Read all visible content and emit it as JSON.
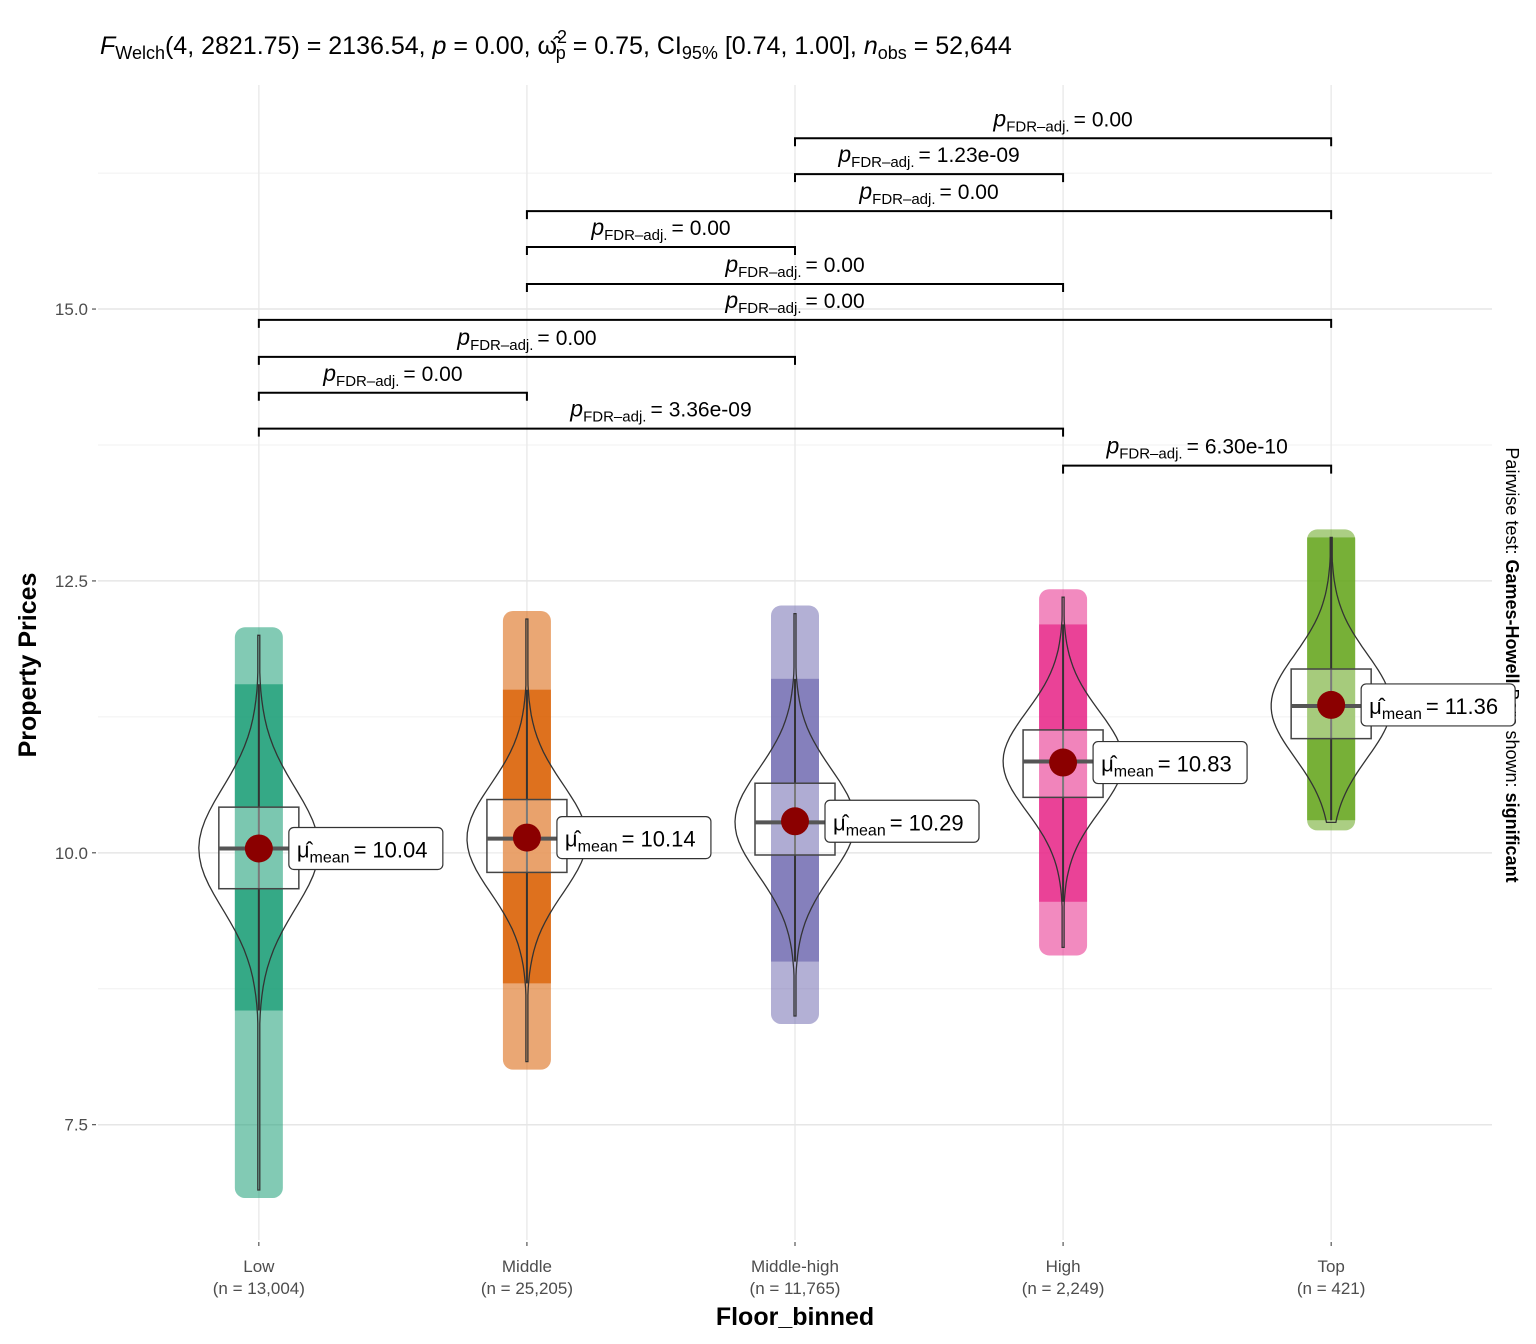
{
  "chart_data": {
    "type": "violin",
    "subtitle_parts": [
      {
        "text": "F",
        "style": "italic"
      },
      {
        "text": "Welch",
        "style": "sub"
      },
      {
        "text": "(4, 2821.75) = 2136.54, ",
        "style": "normal"
      },
      {
        "text": "p",
        "style": "italic"
      },
      {
        "text": " = 0.00, ",
        "style": "normal"
      },
      {
        "text": "ω̂",
        "style": "normal"
      },
      {
        "text": "2",
        "style": "sup"
      },
      {
        "text": "p",
        "style": "sub-under"
      },
      {
        "text": " = 0.75, CI",
        "style": "normal"
      },
      {
        "text": "95%",
        "style": "sub"
      },
      {
        "text": " [0.74, 1.00], ",
        "style": "normal"
      },
      {
        "text": "n",
        "style": "italic"
      },
      {
        "text": "obs",
        "style": "sub"
      },
      {
        "text": " = 52,644",
        "style": "normal"
      }
    ],
    "caption_parts": [
      {
        "text": "Pairwise test: ",
        "style": "normal"
      },
      {
        "text": "Games-Howell",
        "style": "bold"
      },
      {
        "text": " Bars shown: ",
        "style": "normal"
      },
      {
        "text": "significant",
        "style": "bold"
      }
    ],
    "x_label": "Floor_binned",
    "y_label": "Property Prices",
    "categories": [
      "Low",
      "Middle",
      "Middle-high",
      "High",
      "Top"
    ],
    "n_labels": [
      "(n = 13,004)",
      "(n = 25,205)",
      "(n = 11,765)",
      "(n = 2,249)",
      "(n = 421)"
    ],
    "colors": [
      "#1b9e77",
      "#d95f02",
      "#7570b3",
      "#e7298a",
      "#66a61e"
    ],
    "mean_color": "#8b0000",
    "values": [
      10.04,
      10.14,
      10.29,
      10.83,
      11.36
    ],
    "mean_label": {
      "symbol": "μ̂",
      "subscript": "mean",
      "operator": "="
    },
    "box": [
      {
        "q1": 9.67,
        "median": 10.04,
        "q3": 10.42,
        "whisker_low": 8.55,
        "whisker_high": 11.55,
        "point_min": 6.9,
        "point_max": 12.0
      },
      {
        "q1": 9.82,
        "median": 10.13,
        "q3": 10.49,
        "whisker_low": 8.8,
        "whisker_high": 11.5,
        "point_min": 8.08,
        "point_max": 12.15
      },
      {
        "q1": 9.98,
        "median": 10.28,
        "q3": 10.64,
        "whisker_low": 9.0,
        "whisker_high": 11.6,
        "point_min": 8.5,
        "point_max": 12.2
      },
      {
        "q1": 10.51,
        "median": 10.84,
        "q3": 11.13,
        "whisker_low": 9.55,
        "whisker_high": 12.1,
        "point_min": 9.13,
        "point_max": 12.35
      },
      {
        "q1": 11.05,
        "median": 11.35,
        "q3": 11.69,
        "whisker_low": 10.3,
        "whisker_high": 12.9,
        "point_min": 10.28,
        "point_max": 12.9
      }
    ],
    "p_label": {
      "symbol": "p",
      "subscript": "FDR–adj.",
      "operator": "="
    },
    "comparisons": [
      {
        "from": 2,
        "to": 4,
        "y": 16.57,
        "p_value": "0.00"
      },
      {
        "from": 2,
        "to": 3,
        "y": 16.24,
        "p_value": "1.23e-09"
      },
      {
        "from": 1,
        "to": 4,
        "y": 15.9,
        "p_value": "0.00"
      },
      {
        "from": 1,
        "to": 2,
        "y": 15.57,
        "p_value": "0.00"
      },
      {
        "from": 1,
        "to": 3,
        "y": 15.23,
        "p_value": "0.00"
      },
      {
        "from": 0,
        "to": 4,
        "y": 14.9,
        "p_value": "0.00"
      },
      {
        "from": 0,
        "to": 2,
        "y": 14.56,
        "p_value": "0.00"
      },
      {
        "from": 0,
        "to": 1,
        "y": 14.23,
        "p_value": "0.00"
      },
      {
        "from": 0,
        "to": 3,
        "y": 13.9,
        "p_value": "3.36e-09"
      },
      {
        "from": 3,
        "to": 4,
        "y": 13.56,
        "p_value": "6.30e-10"
      }
    ],
    "ylim": [
      6.44,
      17.06
    ],
    "yticks": [
      {
        "value": 7.5,
        "label": "7.5"
      },
      {
        "value": 10,
        "label": "10.0"
      },
      {
        "value": 12.5,
        "label": "12.5"
      },
      {
        "value": 15,
        "label": "15.0"
      }
    ],
    "minor_yticks": [
      8.75,
      11.25,
      13.75,
      16.25
    ],
    "grid": true
  }
}
